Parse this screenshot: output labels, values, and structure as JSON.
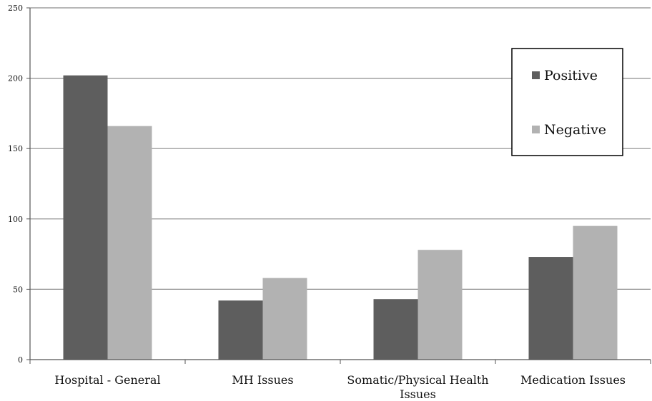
{
  "chart_data": {
    "type": "bar",
    "categories": [
      [
        "Hospital - General"
      ],
      [
        "MH Issues"
      ],
      [
        "Somatic/Physical Health",
        "Issues"
      ],
      [
        "Medication Issues"
      ]
    ],
    "series": [
      {
        "name": "Positive",
        "values": [
          202,
          42,
          43,
          73
        ],
        "color": "#5e5e5e"
      },
      {
        "name": "Negative",
        "values": [
          166,
          58,
          78,
          95
        ],
        "color": "#b2b2b2"
      }
    ],
    "ylim": [
      0,
      250
    ],
    "yticks": [
      "0",
      "50",
      "100",
      "150",
      "200",
      "250"
    ],
    "grid": true,
    "legend_position": "top-right"
  }
}
